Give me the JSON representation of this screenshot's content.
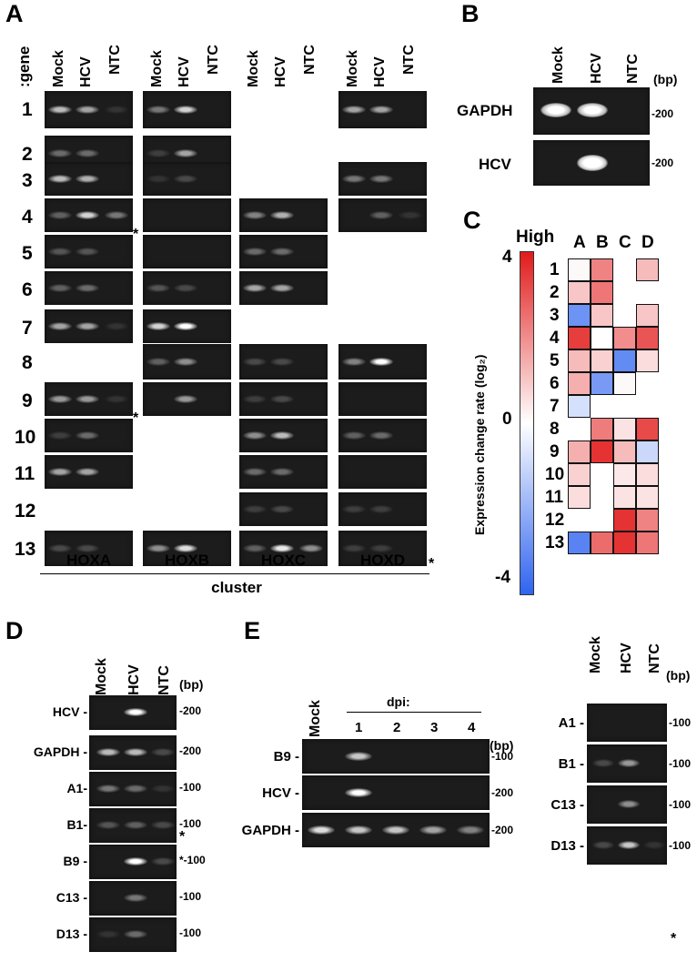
{
  "panels": {
    "A": "A",
    "B": "B",
    "C": "C",
    "D": "D",
    "E": "E"
  },
  "panelA": {
    "gene_label": ":gene",
    "lane_labels": [
      "Mock",
      "HCV",
      "NTC"
    ],
    "rows": [
      "1",
      "2",
      "3",
      "4",
      "5",
      "6",
      "7",
      "8",
      "9",
      "10",
      "11",
      "12",
      "13"
    ],
    "clusters": [
      "HOXA",
      "HOXB",
      "HOXC",
      "HOXD"
    ],
    "cluster_label": "cluster",
    "asterisk": "*"
  },
  "panelB": {
    "lanes": [
      "Mock",
      "HCV",
      "NTC"
    ],
    "bp_unit": "(bp)",
    "rows": [
      {
        "label": "GAPDH",
        "marker": "-200"
      },
      {
        "label": "HCV",
        "marker": "-200"
      }
    ]
  },
  "panelC": {
    "scale_title": "High",
    "scale_ticks": [
      "4",
      "0",
      "-4"
    ],
    "scale_label": "Expression change rate  (log₂)",
    "columns": [
      "A",
      "B",
      "C",
      "D"
    ],
    "rows": [
      "1",
      "2",
      "3",
      "4",
      "5",
      "6",
      "7",
      "8",
      "9",
      "10",
      "11",
      "12",
      "13"
    ],
    "values": [
      [
        0.1,
        2.2,
        null,
        1.2
      ],
      [
        1.0,
        2.4,
        null,
        null
      ],
      [
        -2.8,
        1.0,
        null,
        1.0
      ],
      [
        3.4,
        0.0,
        2.0,
        3.0
      ],
      [
        1.2,
        0.8,
        -3.0,
        0.6
      ],
      [
        1.4,
        -2.6,
        0.1,
        null
      ],
      [
        -0.8,
        null,
        null,
        null
      ],
      [
        null,
        2.3,
        0.5,
        3.2
      ],
      [
        1.4,
        3.6,
        1.2,
        -1.0
      ],
      [
        0.8,
        null,
        0.4,
        0.6
      ],
      [
        0.6,
        null,
        0.5,
        0.5
      ],
      [
        null,
        null,
        3.6,
        2.2
      ],
      [
        -3.2,
        2.6,
        3.6,
        2.4
      ]
    ]
  },
  "panelD": {
    "lanes": [
      "Mock",
      "HCV",
      "NTC"
    ],
    "bp_unit": "(bp)",
    "rows": [
      {
        "label": "HCV -",
        "marker": "-200"
      },
      {
        "label": "GAPDH -",
        "marker": "-200"
      },
      {
        "label": "A1-",
        "marker": "-100"
      },
      {
        "label": "B1-",
        "marker": "-100"
      },
      {
        "label": "B9 -",
        "marker": "*-100"
      },
      {
        "label": "C13 -",
        "marker": "-100"
      },
      {
        "label": "D13 -",
        "marker": "-100"
      }
    ],
    "asterisk": "*"
  },
  "panelE": {
    "mock": "Mock",
    "dpi_label": "dpi:",
    "dpi": [
      "1",
      "2",
      "3",
      "4"
    ],
    "bp_unit": "(bp)",
    "rows": [
      {
        "label": "B9 -",
        "marker": "-100"
      },
      {
        "label": "HCV -",
        "marker": "-200"
      },
      {
        "label": "GAPDH -",
        "marker": "-200"
      }
    ],
    "right_lanes": [
      "Mock",
      "HCV",
      "NTC"
    ],
    "right_bp_unit": "(bp)",
    "right_rows": [
      {
        "label": "A1 -",
        "marker": "-100"
      },
      {
        "label": "B1 -",
        "marker": "-100"
      },
      {
        "label": "C13 -",
        "marker": "-100"
      },
      {
        "label": "D13 -",
        "marker": "-100"
      }
    ],
    "asterisk": "*"
  }
}
